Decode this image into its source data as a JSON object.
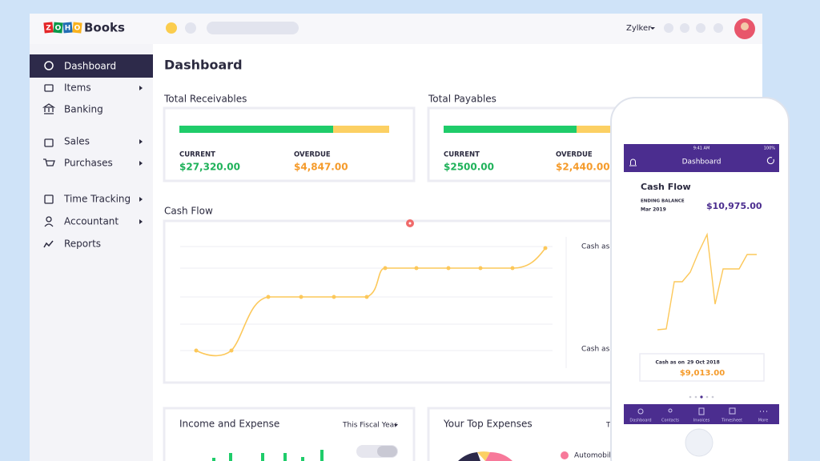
{
  "header": {
    "logo_letters": [
      "Z",
      "O",
      "H",
      "O"
    ],
    "product": "Books",
    "org": "Zylker"
  },
  "sidebar": {
    "items": [
      "Dashboard",
      "Items",
      "Banking",
      "Sales",
      "Purchases",
      "Time Tracking",
      "Accountant",
      "Reports"
    ]
  },
  "main": {
    "title": "Dashboard",
    "receivables": {
      "title": "Total Receivables",
      "current_label": "CURRENT",
      "current": "$27,320.00",
      "overdue_label": "OVERDUE",
      "overdue": "$4,847.00"
    },
    "payables": {
      "title": "Total Payables",
      "current_label": "CURRENT",
      "current": "$2500.00",
      "overdue_label": "OVERDUE",
      "overdue": "$2,440.00"
    },
    "cash_flow": {
      "title": "Cash Flow",
      "labels": [
        "Cash as o",
        "Cash as o"
      ]
    },
    "income_expense": {
      "title": "Income and Expense",
      "period": "This Fiscal Year"
    },
    "top_expenses": {
      "title": "Your Top Expenses",
      "period": "T",
      "legend": [
        "Automobile"
      ]
    }
  },
  "phone": {
    "status_time": "9:41 AM",
    "status_battery": "100%",
    "header": "Dashboard",
    "title": "Cash Flow",
    "ending_balance_label": "ENDING BALANCE",
    "ending_balance_date": "Mar 2019",
    "ending_balance": "$10,975.00",
    "cash_as_on_label": "Cash as on",
    "cash_as_on_date": "29 Oct 2018",
    "cash_as_on": "$9,013.00",
    "tabs": [
      "Dashboard",
      "Contacts",
      "Invoices",
      "Timesheet",
      "More"
    ]
  }
}
